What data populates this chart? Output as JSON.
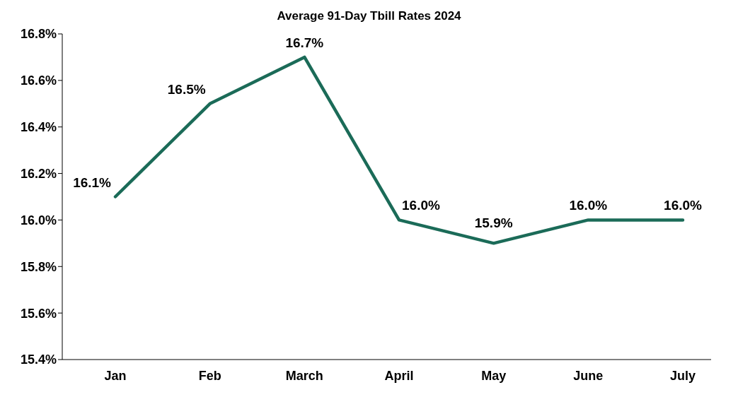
{
  "chart_data": {
    "type": "line",
    "title": "Average 91-Day Tbill Rates 2024",
    "categories": [
      "Jan",
      "Feb",
      "March",
      "April",
      "May",
      "June",
      "July"
    ],
    "series": [
      {
        "color": "#1b6b58",
        "values": [
          16.1,
          16.5,
          16.7,
          16.0,
          15.9,
          16.0,
          16.0
        ],
        "value_labels": [
          "16.1%",
          "16.5%",
          "16.7%",
          "16.0%",
          "15.9%",
          "16.0%",
          "16.0%"
        ]
      }
    ],
    "ylim": [
      15.4,
      16.8
    ],
    "yticks": [
      {
        "value": 15.4,
        "label": "15.4%"
      },
      {
        "value": 15.6,
        "label": "15.6%"
      },
      {
        "value": 15.8,
        "label": "15.8%"
      },
      {
        "value": 16.0,
        "label": "16.0%"
      },
      {
        "value": 16.2,
        "label": "16.2%"
      },
      {
        "value": 16.4,
        "label": "16.4%"
      },
      {
        "value": 16.6,
        "label": "16.6%"
      },
      {
        "value": 16.8,
        "label": "16.8%"
      }
    ],
    "grid": false,
    "marker": "none",
    "line_style": "solid"
  }
}
